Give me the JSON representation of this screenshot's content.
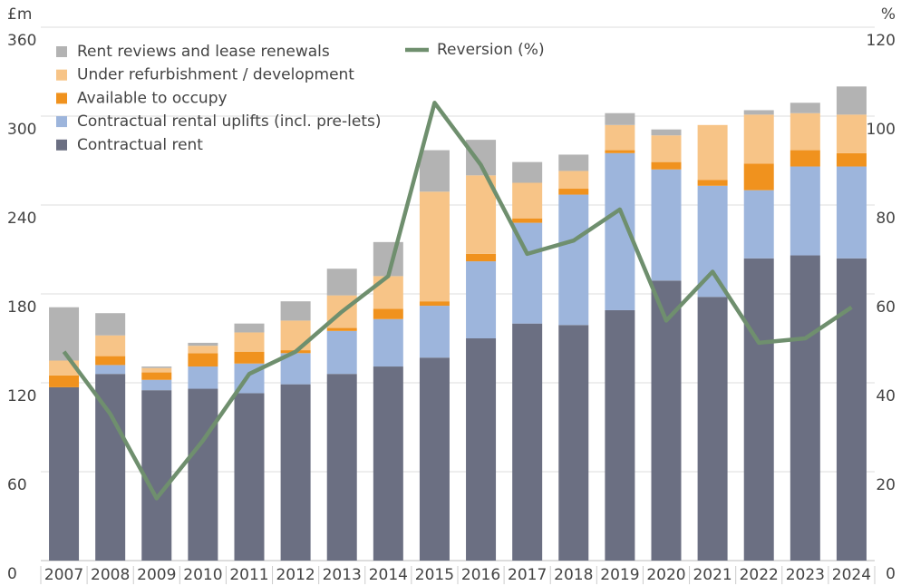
{
  "chart_data": {
    "type": "bar",
    "y_unit": "£m",
    "y2_unit": "%",
    "categories": [
      "2007",
      "2008",
      "2009",
      "2010",
      "2011",
      "2012",
      "2013",
      "2014",
      "2015",
      "2016",
      "2017",
      "2018",
      "2019",
      "2020",
      "2021",
      "2022",
      "2023",
      "2024"
    ],
    "stacked": true,
    "legend": "upper left",
    "grid": true,
    "ylim": [
      0,
      360
    ],
    "yticks": [
      0,
      60,
      120,
      180,
      240,
      300,
      360
    ],
    "y2lim": [
      0,
      120
    ],
    "y2ticks": [
      0,
      20,
      40,
      60,
      80,
      100,
      120
    ],
    "series": [
      {
        "name": "Contractual rent",
        "color": "#6b6f82",
        "values": [
          117,
          126,
          115,
          116,
          113,
          119,
          126,
          131,
          137,
          150,
          160,
          159,
          169,
          189,
          178,
          204,
          206,
          204
        ]
      },
      {
        "name": "Contractual rental uplifts (incl. pre-lets)",
        "color": "#9db5dc",
        "values": [
          0,
          6,
          7,
          15,
          20,
          21,
          29,
          32,
          35,
          52,
          68,
          88,
          106,
          75,
          75,
          46,
          60,
          62
        ]
      },
      {
        "name": "Available to occupy",
        "color": "#f0921e",
        "values": [
          8,
          6,
          5,
          9,
          8,
          2,
          2,
          7,
          3,
          5,
          3,
          4,
          2,
          5,
          4,
          18,
          11,
          9
        ]
      },
      {
        "name": "Under refurbishment / development",
        "color": "#f7c487",
        "values": [
          10,
          14,
          3,
          5,
          13,
          20,
          22,
          22,
          74,
          53,
          24,
          12,
          17,
          18,
          37,
          33,
          25,
          26
        ]
      },
      {
        "name": "Rent reviews and lease renewals",
        "color": "#b3b3b3",
        "values": [
          36,
          15,
          1,
          2,
          6,
          13,
          18,
          23,
          28,
          24,
          14,
          11,
          8,
          4,
          0,
          3,
          7,
          19
        ]
      },
      {
        "name": "Reversion (%)",
        "type": "line",
        "axis": "y2",
        "color": "#6f8f6e",
        "values": [
          47,
          33,
          14,
          27,
          42,
          47,
          56,
          64,
          103,
          89,
          69,
          72,
          79,
          54,
          65,
          49,
          50,
          57
        ]
      }
    ]
  }
}
